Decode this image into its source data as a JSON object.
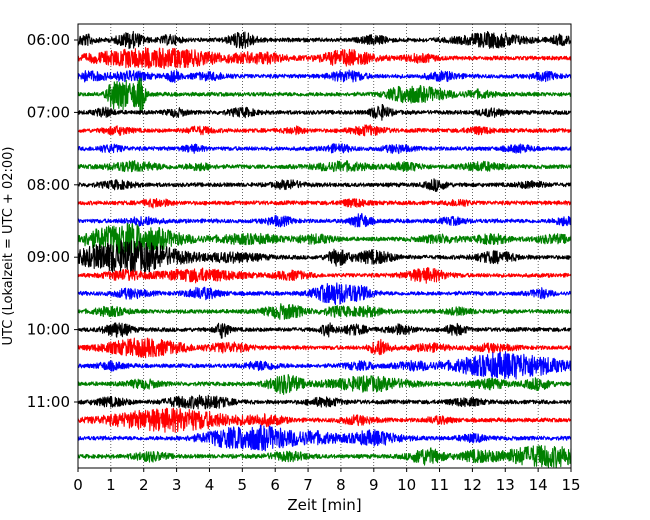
{
  "chart_data": {
    "type": "line",
    "xlabel": "Zeit  [min]",
    "ylabel": "UTC (Lokalzeit = UTC + 02:00)",
    "xlim": [
      0,
      15
    ],
    "x_ticks": [
      "0",
      "1",
      "2",
      "3",
      "4",
      "5",
      "6",
      "7",
      "8",
      "9",
      "10",
      "11",
      "12",
      "13",
      "14",
      "15"
    ],
    "y_tick_labels": [
      "06:00",
      "07:00",
      "08:00",
      "09:00",
      "10:00",
      "11:00"
    ],
    "grid": "vertical dotted",
    "rows_per_hour": 4,
    "row_colors": [
      "#000000",
      "#ff0000",
      "#0000ff",
      "#008000"
    ],
    "traces": [
      {
        "start": "06:00",
        "events": [
          [
            0.2,
            1.2,
            0.3
          ],
          [
            1.6,
            1.8,
            0.4
          ],
          [
            2.8,
            1.0,
            0.3
          ],
          [
            5.0,
            1.8,
            0.4
          ],
          [
            9.0,
            0.9,
            0.4
          ],
          [
            12.6,
            1.6,
            1.0
          ],
          [
            14.7,
            1.0,
            0.3
          ]
        ]
      },
      {
        "start": "06:15",
        "events": [
          [
            1.7,
            1.8,
            1.4
          ],
          [
            3.3,
            1.4,
            1.2
          ],
          [
            5.5,
            1.2,
            0.8
          ],
          [
            8.2,
            1.8,
            0.8
          ],
          [
            10.4,
            0.8,
            0.5
          ]
        ]
      },
      {
        "start": "06:30",
        "events": [
          [
            0.3,
            1.0,
            0.5
          ],
          [
            1.6,
            1.0,
            0.6
          ],
          [
            2.9,
            1.1,
            0.2
          ],
          [
            4.0,
            0.7,
            0.6
          ],
          [
            8.2,
            1.2,
            0.5
          ],
          [
            11.1,
            0.9,
            0.5
          ],
          [
            14.2,
            0.8,
            0.4
          ]
        ]
      },
      {
        "start": "06:45",
        "events": [
          [
            1.1,
            3.6,
            0.2
          ],
          [
            1.4,
            3.2,
            0.15
          ],
          [
            1.75,
            3.2,
            0.2
          ],
          [
            1.95,
            2.4,
            0.12
          ],
          [
            9.9,
            1.6,
            0.5
          ],
          [
            10.7,
            1.3,
            0.7
          ],
          [
            12.2,
            0.8,
            0.4
          ]
        ]
      },
      {
        "start": "07:00",
        "events": [
          [
            0.8,
            0.9,
            0.3
          ],
          [
            3.0,
            0.8,
            0.3
          ],
          [
            5.0,
            0.9,
            0.4
          ],
          [
            9.2,
            1.6,
            0.3
          ],
          [
            12.6,
            0.8,
            0.4
          ]
        ]
      },
      {
        "start": "07:15",
        "events": [
          [
            1.2,
            0.8,
            0.4
          ],
          [
            3.7,
            0.7,
            0.4
          ],
          [
            6.6,
            0.7,
            0.3
          ],
          [
            8.8,
            1.0,
            0.5
          ],
          [
            12.2,
            0.7,
            0.4
          ]
        ]
      },
      {
        "start": "07:30",
        "events": [
          [
            1.0,
            0.7,
            0.4
          ],
          [
            3.5,
            0.7,
            0.3
          ],
          [
            7.9,
            0.8,
            0.4
          ],
          [
            9.7,
            0.8,
            0.4
          ],
          [
            13.4,
            0.7,
            0.4
          ]
        ]
      },
      {
        "start": "07:45",
        "events": [
          [
            1.7,
            1.0,
            0.8
          ],
          [
            3.7,
            0.7,
            0.4
          ],
          [
            8.0,
            1.0,
            0.8
          ],
          [
            10.0,
            0.8,
            0.5
          ],
          [
            12.3,
            0.9,
            0.6
          ]
        ]
      },
      {
        "start": "08:00",
        "events": [
          [
            1.2,
            0.8,
            0.5
          ],
          [
            6.4,
            0.9,
            0.4
          ],
          [
            10.9,
            1.2,
            0.3
          ],
          [
            13.8,
            0.7,
            0.4
          ]
        ]
      },
      {
        "start": "08:15",
        "events": [
          [
            2.4,
            0.8,
            0.4
          ],
          [
            8.4,
            0.8,
            0.4
          ],
          [
            11.6,
            0.7,
            0.3
          ]
        ]
      },
      {
        "start": "08:30",
        "events": [
          [
            2.0,
            0.8,
            0.5
          ],
          [
            6.1,
            1.0,
            0.4
          ],
          [
            8.6,
            1.5,
            0.3
          ],
          [
            11.4,
            0.7,
            0.4
          ],
          [
            14.8,
            0.9,
            0.3
          ]
        ]
      },
      {
        "start": "08:45",
        "events": [
          [
            1.6,
            3.5,
            1.4
          ],
          [
            5.2,
            1.0,
            1.0
          ],
          [
            7.2,
            0.9,
            0.6
          ],
          [
            11.0,
            0.8,
            0.6
          ],
          [
            12.6,
            1.0,
            0.5
          ],
          [
            14.5,
            0.9,
            0.6
          ]
        ]
      },
      {
        "start": "09:00",
        "events": [
          [
            1.5,
            3.8,
            1.6
          ],
          [
            4.8,
            1.0,
            0.8
          ],
          [
            7.9,
            1.8,
            0.3
          ],
          [
            9.0,
            1.4,
            0.6
          ],
          [
            12.7,
            1.2,
            0.6
          ]
        ]
      },
      {
        "start": "09:15",
        "events": [
          [
            1.4,
            1.0,
            0.6
          ],
          [
            3.7,
            1.4,
            1.2
          ],
          [
            6.5,
            0.9,
            0.5
          ],
          [
            10.6,
            1.5,
            0.6
          ]
        ]
      },
      {
        "start": "09:30",
        "events": [
          [
            1.6,
            1.0,
            0.5
          ],
          [
            3.8,
            1.2,
            0.5
          ],
          [
            7.8,
            2.4,
            0.6
          ],
          [
            8.6,
            1.2,
            0.4
          ],
          [
            14.1,
            1.0,
            0.3
          ]
        ]
      },
      {
        "start": "09:45",
        "events": [
          [
            1.0,
            0.9,
            0.5
          ],
          [
            6.3,
            1.6,
            0.6
          ],
          [
            7.9,
            1.0,
            0.4
          ],
          [
            8.8,
            1.0,
            0.5
          ],
          [
            11.6,
            0.7,
            0.4
          ]
        ]
      },
      {
        "start": "10:00",
        "events": [
          [
            1.2,
            1.6,
            0.4
          ],
          [
            4.4,
            1.8,
            0.2
          ],
          [
            7.6,
            1.4,
            0.2
          ],
          [
            8.4,
            1.0,
            0.4
          ],
          [
            9.8,
            1.0,
            0.4
          ],
          [
            11.5,
            1.2,
            0.3
          ]
        ]
      },
      {
        "start": "10:15",
        "events": [
          [
            2.0,
            2.0,
            1.2
          ],
          [
            4.6,
            1.0,
            0.6
          ],
          [
            9.2,
            1.8,
            0.3
          ],
          [
            10.7,
            0.8,
            0.5
          ],
          [
            12.6,
            0.8,
            0.6
          ]
        ]
      },
      {
        "start": "10:30",
        "events": [
          [
            1.0,
            0.8,
            0.4
          ],
          [
            5.6,
            0.9,
            0.5
          ],
          [
            8.6,
            0.8,
            0.5
          ],
          [
            10.2,
            0.8,
            0.5
          ],
          [
            13.1,
            3.0,
            1.6
          ]
        ]
      },
      {
        "start": "10:45",
        "events": [
          [
            2.0,
            0.9,
            0.5
          ],
          [
            6.3,
            2.2,
            0.5
          ],
          [
            8.8,
            1.6,
            1.2
          ],
          [
            12.5,
            1.0,
            0.6
          ],
          [
            14.0,
            1.2,
            0.4
          ]
        ]
      },
      {
        "start": "11:00",
        "events": [
          [
            1.0,
            0.9,
            0.5
          ],
          [
            3.1,
            0.9,
            0.5
          ],
          [
            4.0,
            1.4,
            0.6
          ],
          [
            7.5,
            0.9,
            0.5
          ],
          [
            11.8,
            0.8,
            0.5
          ]
        ]
      },
      {
        "start": "11:15",
        "events": [
          [
            2.8,
            2.6,
            1.8
          ],
          [
            5.7,
            1.0,
            0.6
          ],
          [
            8.5,
            0.9,
            0.5
          ],
          [
            11.0,
            0.7,
            0.4
          ]
        ]
      },
      {
        "start": "11:30",
        "events": [
          [
            4.4,
            1.0,
            0.8
          ],
          [
            5.6,
            2.6,
            1.2
          ],
          [
            7.3,
            1.0,
            0.6
          ],
          [
            9.0,
            1.6,
            0.8
          ],
          [
            12.0,
            0.8,
            0.4
          ]
        ]
      },
      {
        "start": "11:45",
        "events": [
          [
            2.2,
            1.0,
            0.5
          ],
          [
            6.4,
            0.9,
            0.6
          ],
          [
            10.6,
            1.8,
            0.5
          ],
          [
            12.1,
            1.0,
            0.5
          ],
          [
            14.2,
            2.4,
            1.4
          ]
        ]
      }
    ]
  }
}
